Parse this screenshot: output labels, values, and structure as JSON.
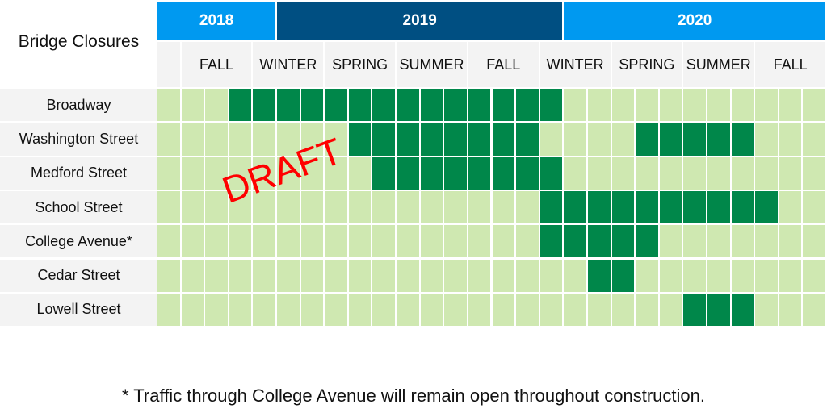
{
  "chart_data": {
    "type": "table",
    "title": "Bridge Closures",
    "years": [
      {
        "label": "2018",
        "columns": 5,
        "color": "#0099f0"
      },
      {
        "label": "2019",
        "columns": 12,
        "color": "#004f82"
      },
      {
        "label": "2020",
        "columns": 11,
        "color": "#0099f0"
      }
    ],
    "seasons": [
      {
        "label": "",
        "columns": 1
      },
      {
        "label": "FALL",
        "columns": 3
      },
      {
        "label": "WINTER",
        "columns": 3
      },
      {
        "label": "SPRING",
        "columns": 3
      },
      {
        "label": "SUMMER",
        "columns": 3
      },
      {
        "label": "FALL",
        "columns": 3
      },
      {
        "label": "WINTER",
        "columns": 3
      },
      {
        "label": "SPRING",
        "columns": 3
      },
      {
        "label": "SUMMER",
        "columns": 3
      },
      {
        "label": "FALL",
        "columns": 3
      }
    ],
    "total_columns": 28,
    "rows": [
      {
        "label": "Broadway",
        "closed_ranges": [
          [
            3,
            16
          ]
        ]
      },
      {
        "label": "Washington Street",
        "closed_ranges": [
          [
            8,
            15
          ],
          [
            20,
            24
          ]
        ]
      },
      {
        "label": "Medford Street",
        "closed_ranges": [
          [
            9,
            16
          ]
        ]
      },
      {
        "label": "School Street",
        "closed_ranges": [
          [
            16,
            25
          ]
        ]
      },
      {
        "label": "College Avenue*",
        "closed_ranges": [
          [
            16,
            20
          ]
        ]
      },
      {
        "label": "Cedar Street",
        "closed_ranges": [
          [
            18,
            19
          ]
        ]
      },
      {
        "label": "Lowell Street",
        "closed_ranges": [
          [
            22,
            24
          ]
        ]
      }
    ],
    "colors": {
      "closed": "#00874a",
      "open": "#cfe8b1"
    },
    "watermark": "DRAFT",
    "footnote": "* Traffic through College Avenue will remain open throughout construction."
  }
}
